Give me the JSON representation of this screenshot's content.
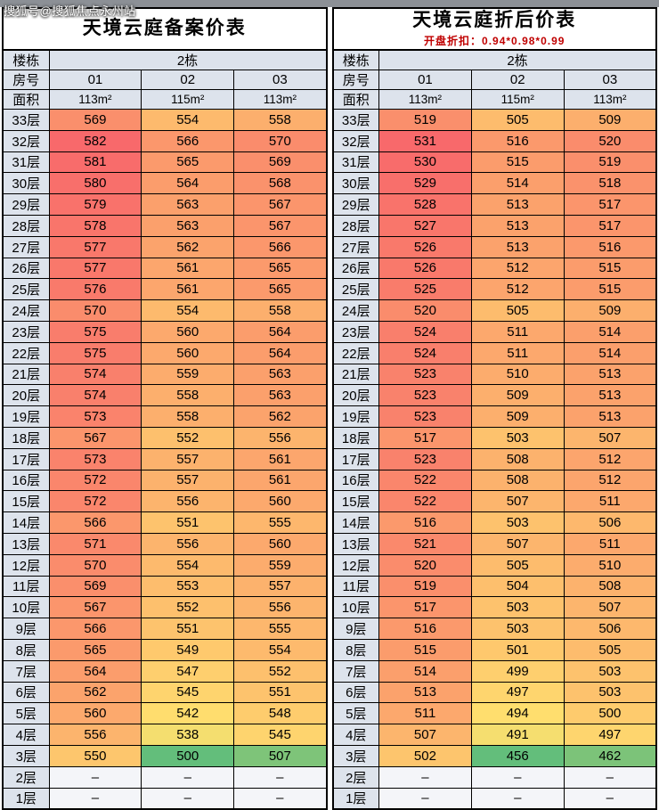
{
  "watermark": "搜狐号@搜狐焦点永州站",
  "ui_colors": {
    "top_strip": "#8c9096",
    "header_bg": "#dde3ec",
    "dash_bg": "#f4f5f9",
    "subtitle_red": "#c00000",
    "heat_min_green": "#63be7b",
    "heat_mid_yellow": "#ffe06e",
    "heat_max_red": "#f8696b"
  },
  "chart_data": [
    {
      "type": "heatmap",
      "title": "天境云庭备案价表",
      "subtitle": "",
      "header": {
        "building_label": "楼栋",
        "building_value": "2栋",
        "room_label": "房号",
        "rooms": [
          "01",
          "02",
          "03"
        ],
        "area_label": "面积",
        "areas": [
          "113m²",
          "115m²",
          "113m²"
        ]
      },
      "floor_labels": [
        "33层",
        "32层",
        "31层",
        "30层",
        "29层",
        "28层",
        "27层",
        "26层",
        "25层",
        "24层",
        "23层",
        "22层",
        "21层",
        "20层",
        "19层",
        "18层",
        "17层",
        "16层",
        "15层",
        "14层",
        "13层",
        "12层",
        "11层",
        "10层",
        "9层",
        "8层",
        "7层",
        "6层",
        "5层",
        "4层",
        "3层",
        "2层",
        "1层"
      ],
      "values": [
        [
          569,
          554,
          558
        ],
        [
          582,
          566,
          570
        ],
        [
          581,
          565,
          569
        ],
        [
          580,
          564,
          568
        ],
        [
          579,
          563,
          567
        ],
        [
          578,
          563,
          567
        ],
        [
          577,
          562,
          566
        ],
        [
          577,
          561,
          565
        ],
        [
          576,
          561,
          565
        ],
        [
          570,
          554,
          558
        ],
        [
          575,
          560,
          564
        ],
        [
          575,
          560,
          564
        ],
        [
          574,
          559,
          563
        ],
        [
          574,
          558,
          563
        ],
        [
          573,
          558,
          562
        ],
        [
          567,
          552,
          556
        ],
        [
          573,
          557,
          561
        ],
        [
          572,
          557,
          561
        ],
        [
          572,
          556,
          560
        ],
        [
          566,
          551,
          555
        ],
        [
          571,
          556,
          560
        ],
        [
          570,
          554,
          559
        ],
        [
          569,
          553,
          557
        ],
        [
          567,
          552,
          556
        ],
        [
          566,
          551,
          555
        ],
        [
          565,
          549,
          554
        ],
        [
          564,
          547,
          552
        ],
        [
          562,
          545,
          551
        ],
        [
          560,
          542,
          548
        ],
        [
          556,
          538,
          545
        ],
        [
          550,
          500,
          507
        ],
        [
          "–",
          "–",
          "–"
        ],
        [
          "–",
          "–",
          "–"
        ]
      ]
    },
    {
      "type": "heatmap",
      "title": "天境云庭折后价表",
      "subtitle": "开盘折扣：0.94*0.98*0.99",
      "header": {
        "building_label": "楼栋",
        "building_value": "2栋",
        "room_label": "房号",
        "rooms": [
          "01",
          "02",
          "03"
        ],
        "area_label": "面积",
        "areas": [
          "113m²",
          "115m²",
          "113m²"
        ]
      },
      "floor_labels": [
        "33层",
        "32层",
        "31层",
        "30层",
        "29层",
        "28层",
        "27层",
        "26层",
        "25层",
        "24层",
        "23层",
        "22层",
        "21层",
        "20层",
        "19层",
        "18层",
        "17层",
        "16层",
        "15层",
        "14层",
        "13层",
        "12层",
        "11层",
        "10层",
        "9层",
        "8层",
        "7层",
        "6层",
        "5层",
        "4层",
        "3层",
        "2层",
        "1层"
      ],
      "values": [
        [
          519,
          505,
          509
        ],
        [
          531,
          516,
          520
        ],
        [
          530,
          515,
          519
        ],
        [
          529,
          514,
          518
        ],
        [
          528,
          513,
          517
        ],
        [
          527,
          513,
          517
        ],
        [
          526,
          513,
          516
        ],
        [
          526,
          512,
          515
        ],
        [
          525,
          512,
          515
        ],
        [
          520,
          505,
          509
        ],
        [
          524,
          511,
          514
        ],
        [
          524,
          511,
          514
        ],
        [
          523,
          510,
          513
        ],
        [
          523,
          509,
          513
        ],
        [
          523,
          509,
          513
        ],
        [
          517,
          503,
          507
        ],
        [
          523,
          508,
          512
        ],
        [
          522,
          508,
          512
        ],
        [
          522,
          507,
          511
        ],
        [
          516,
          503,
          506
        ],
        [
          521,
          507,
          511
        ],
        [
          520,
          505,
          510
        ],
        [
          519,
          504,
          508
        ],
        [
          517,
          503,
          507
        ],
        [
          516,
          503,
          506
        ],
        [
          515,
          501,
          505
        ],
        [
          514,
          499,
          503
        ],
        [
          513,
          497,
          503
        ],
        [
          511,
          494,
          500
        ],
        [
          507,
          491,
          497
        ],
        [
          502,
          456,
          462
        ],
        [
          "–",
          "–",
          "–"
        ],
        [
          "–",
          "–",
          "–"
        ]
      ]
    }
  ]
}
